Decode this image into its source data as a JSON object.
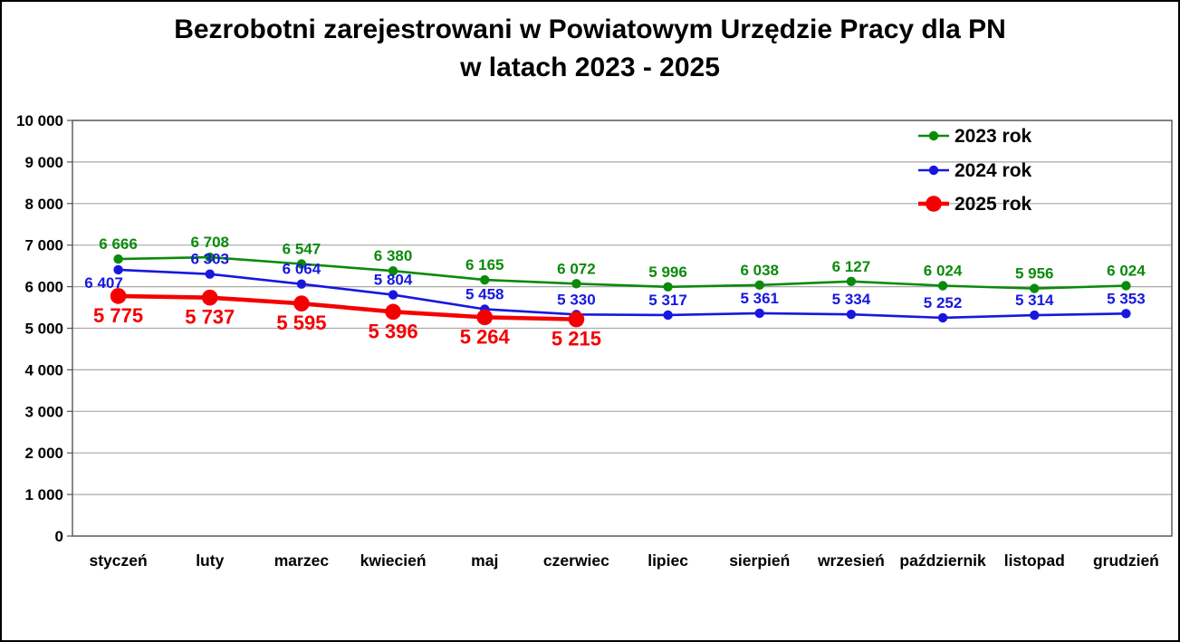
{
  "title": {
    "line1": "Bezrobotni zarejestrowani w Powiatowym Urzędzie Pracy dla PN",
    "line2": "w latach 2023 - 2025"
  },
  "chart_data": {
    "type": "line",
    "title": "Bezrobotni zarejestrowani w Powiatowym Urzędzie Pracy dla PN w latach 2023 - 2025",
    "xlabel": "",
    "ylabel": "",
    "categories": [
      "styczeń",
      "luty",
      "marzec",
      "kwiecień",
      "maj",
      "czerwiec",
      "lipiec",
      "sierpień",
      "wrzesień",
      "październik",
      "listopad",
      "grudzień"
    ],
    "series": [
      {
        "name": "2023 rok",
        "color": "#0b8a0b",
        "values": [
          6666,
          6708,
          6547,
          6380,
          6165,
          6072,
          5996,
          6038,
          6127,
          6024,
          5956,
          6024
        ],
        "label_position": "above",
        "line_width": 2.6,
        "marker_radius": 5.2,
        "label_size": 17
      },
      {
        "name": "2024 rok",
        "color": "#1717e0",
        "values": [
          6407,
          6303,
          6064,
          5804,
          5458,
          5330,
          5317,
          5361,
          5334,
          5252,
          5314,
          5353
        ],
        "label_position": "above",
        "label_below_indices": [
          0
        ],
        "line_width": 2.6,
        "marker_radius": 5.2,
        "label_size": 17
      },
      {
        "name": "2025 rok",
        "color": "#f40000",
        "values": [
          5775,
          5737,
          5595,
          5396,
          5264,
          5215
        ],
        "label_position": "below",
        "line_width": 4.6,
        "marker_radius": 8.8,
        "label_size": 22
      }
    ],
    "ylim": [
      0,
      10000
    ],
    "ytick_step": 1000,
    "ytick_labels": [
      "0",
      "1 000",
      "2 000",
      "3 000",
      "4 000",
      "5 000",
      "6 000",
      "7 000",
      "8 000",
      "9 000",
      "10 000"
    ],
    "grid": true,
    "legend_position": "upper-right-inside",
    "number_format": "space-thousands",
    "style": {
      "grid_color": "#a8a8a8",
      "axis_color": "#555555",
      "text_color": "#000000",
      "background": "#ffffff",
      "outer_border": "#000000"
    }
  }
}
